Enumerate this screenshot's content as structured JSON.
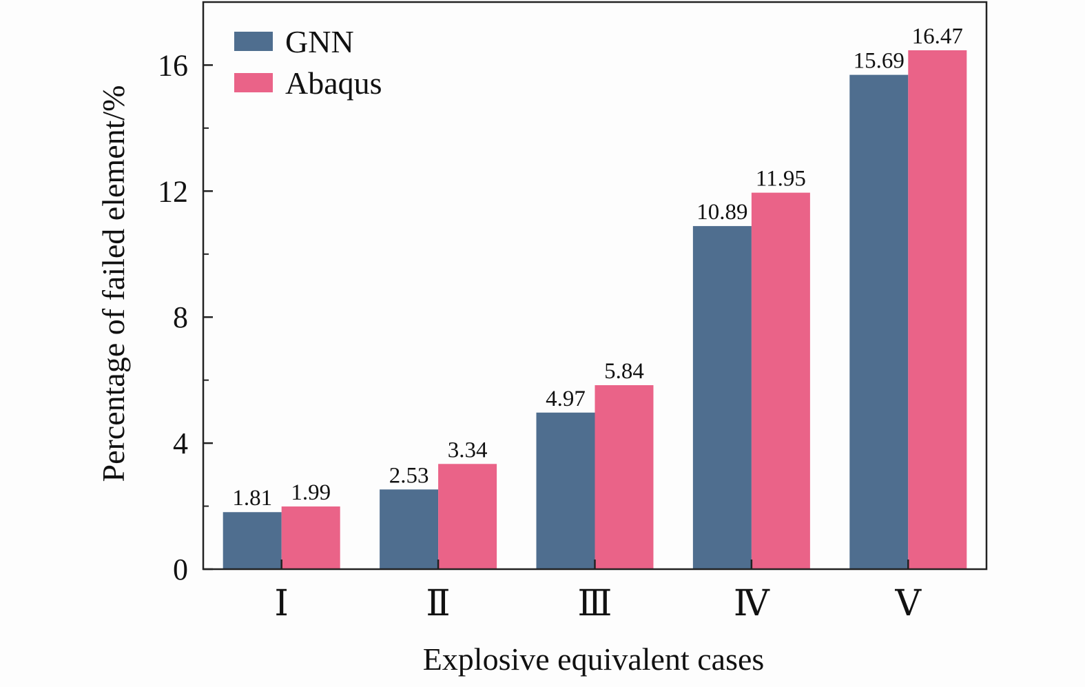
{
  "chart_data": {
    "type": "bar",
    "title": "",
    "xlabel": "Explosive equivalent cases",
    "ylabel": "Percentage of failed element/%",
    "categories": [
      "Ⅰ",
      "Ⅱ",
      "Ⅲ",
      "Ⅳ",
      "Ⅴ"
    ],
    "ylim": [
      0,
      18
    ],
    "yticks": [
      0,
      4,
      8,
      12,
      16
    ],
    "ytick_labels": [
      "0",
      "4",
      "8",
      "12",
      "16"
    ],
    "grid": false,
    "legend_position": "top-left",
    "series": [
      {
        "name": "GNN",
        "color": "#4f6e8f",
        "values": [
          1.81,
          2.53,
          4.97,
          10.89,
          15.69
        ],
        "labels": [
          "1.81",
          "2.53",
          "4.97",
          "10.89",
          "15.69"
        ]
      },
      {
        "name": "Abaqus",
        "color": "#ea6388",
        "values": [
          1.99,
          3.34,
          5.84,
          11.95,
          16.47
        ],
        "labels": [
          "1.99",
          "3.34",
          "5.84",
          "11.95",
          "16.47"
        ]
      }
    ]
  }
}
